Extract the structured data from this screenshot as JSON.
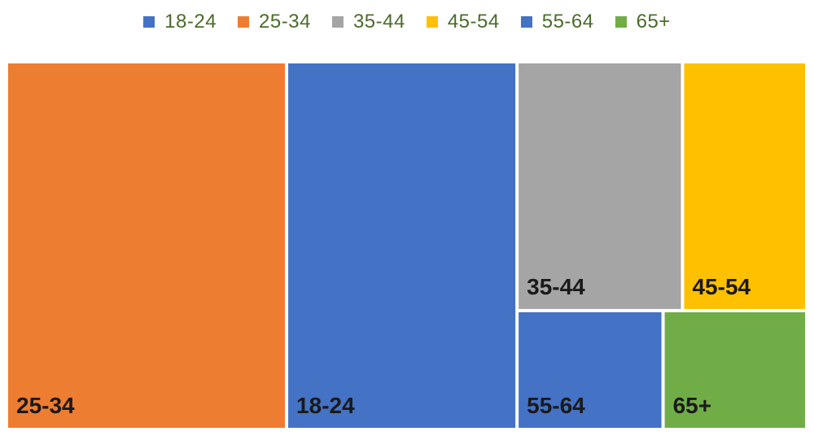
{
  "chart_data": {
    "type": "treemap",
    "legend_position": "top",
    "items": [
      {
        "name": "25-34",
        "value": 35.0,
        "color": "#ED7D31"
      },
      {
        "name": "18-24",
        "value": 28.8,
        "color": "#4472C4"
      },
      {
        "name": "35-44",
        "value": 14.0,
        "color": "#A5A5A5"
      },
      {
        "name": "45-54",
        "value": 10.5,
        "color": "#FFC000"
      },
      {
        "name": "55-64",
        "value": 5.9,
        "color": "#4472C4"
      },
      {
        "name": "65+",
        "value": 5.8,
        "color": "#70AD47"
      }
    ],
    "legend": [
      {
        "label": "18-24",
        "color": "#4472C4"
      },
      {
        "label": "25-34",
        "color": "#ED7D31"
      },
      {
        "label": "35-44",
        "color": "#A5A5A5"
      },
      {
        "label": "45-54",
        "color": "#FFC000"
      },
      {
        "label": "55-64",
        "color": "#4472C4"
      },
      {
        "label": "65+",
        "color": "#70AD47"
      }
    ]
  }
}
